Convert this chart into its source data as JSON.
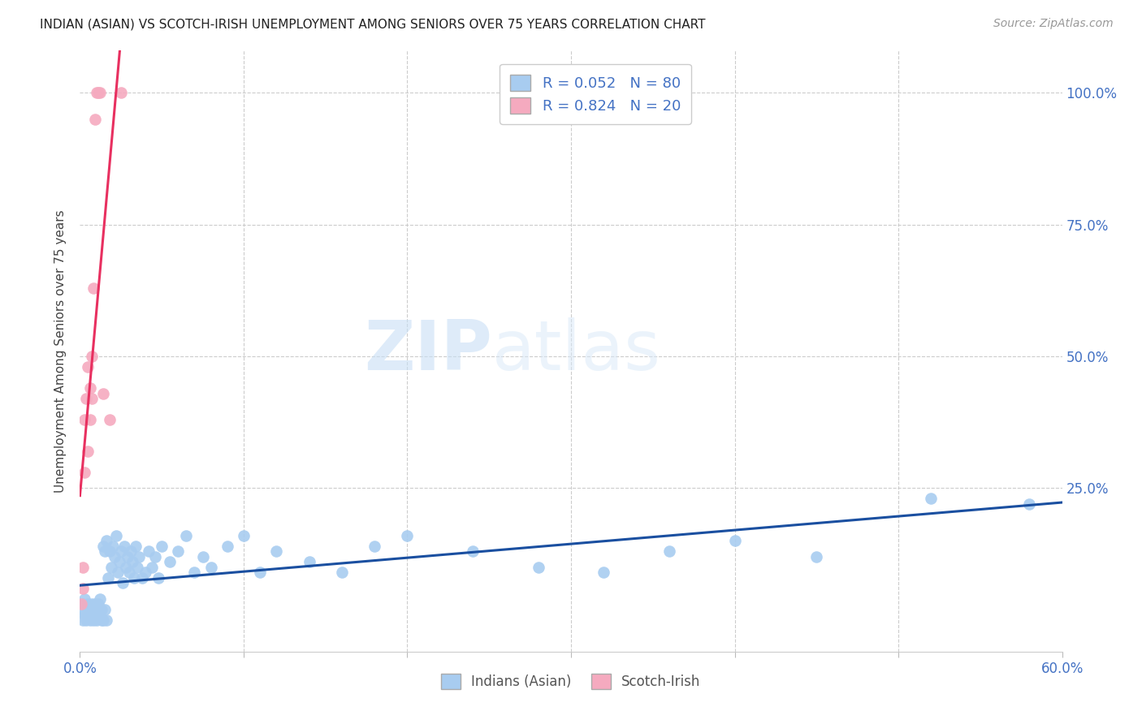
{
  "title": "INDIAN (ASIAN) VS SCOTCH-IRISH UNEMPLOYMENT AMONG SENIORS OVER 75 YEARS CORRELATION CHART",
  "source": "Source: ZipAtlas.com",
  "ylabel": "Unemployment Among Seniors over 75 years",
  "xlim": [
    0.0,
    0.6
  ],
  "ylim": [
    -0.06,
    1.08
  ],
  "watermark_zip": "ZIP",
  "watermark_atlas": "atlas",
  "indian_color": "#a8ccf0",
  "scotch_color": "#f5aabf",
  "indian_line_color": "#1a4fa0",
  "scotch_line_color": "#e83060",
  "legend_r_indian": "R = 0.052",
  "legend_n_indian": "N = 80",
  "legend_r_scotch": "R = 0.824",
  "legend_n_scotch": "N = 20",
  "indian_x": [
    0.001,
    0.002,
    0.002,
    0.003,
    0.003,
    0.004,
    0.004,
    0.005,
    0.005,
    0.006,
    0.006,
    0.007,
    0.007,
    0.008,
    0.008,
    0.009,
    0.009,
    0.01,
    0.01,
    0.011,
    0.011,
    0.012,
    0.012,
    0.013,
    0.013,
    0.014,
    0.014,
    0.015,
    0.015,
    0.016,
    0.016,
    0.017,
    0.018,
    0.019,
    0.02,
    0.021,
    0.022,
    0.023,
    0.024,
    0.025,
    0.026,
    0.027,
    0.028,
    0.029,
    0.03,
    0.031,
    0.032,
    0.033,
    0.034,
    0.035,
    0.036,
    0.038,
    0.04,
    0.042,
    0.044,
    0.046,
    0.048,
    0.05,
    0.055,
    0.06,
    0.065,
    0.07,
    0.075,
    0.08,
    0.09,
    0.1,
    0.11,
    0.12,
    0.14,
    0.16,
    0.18,
    0.2,
    0.24,
    0.28,
    0.32,
    0.36,
    0.4,
    0.45,
    0.52,
    0.58
  ],
  "indian_y": [
    0.02,
    0.0,
    0.03,
    0.01,
    0.04,
    0.0,
    0.02,
    0.01,
    0.03,
    0.0,
    0.02,
    0.01,
    0.03,
    0.02,
    0.0,
    0.01,
    0.03,
    0.02,
    0.0,
    0.01,
    0.03,
    0.02,
    0.04,
    0.0,
    0.02,
    0.14,
    0.0,
    0.13,
    0.02,
    0.15,
    0.0,
    0.08,
    0.13,
    0.1,
    0.14,
    0.12,
    0.16,
    0.09,
    0.11,
    0.13,
    0.07,
    0.14,
    0.1,
    0.12,
    0.09,
    0.13,
    0.11,
    0.08,
    0.14,
    0.1,
    0.12,
    0.08,
    0.09,
    0.13,
    0.1,
    0.12,
    0.08,
    0.14,
    0.11,
    0.13,
    0.16,
    0.09,
    0.12,
    0.1,
    0.14,
    0.16,
    0.09,
    0.13,
    0.11,
    0.09,
    0.14,
    0.16,
    0.13,
    0.1,
    0.09,
    0.13,
    0.15,
    0.12,
    0.23,
    0.22
  ],
  "scotch_x": [
    0.001,
    0.002,
    0.002,
    0.003,
    0.003,
    0.004,
    0.005,
    0.005,
    0.006,
    0.006,
    0.007,
    0.007,
    0.008,
    0.009,
    0.01,
    0.011,
    0.012,
    0.014,
    0.018,
    0.025
  ],
  "scotch_y": [
    0.03,
    0.06,
    0.1,
    0.28,
    0.38,
    0.42,
    0.32,
    0.48,
    0.38,
    0.44,
    0.42,
    0.5,
    0.63,
    0.95,
    1.0,
    1.0,
    1.0,
    0.43,
    0.38,
    1.0
  ]
}
